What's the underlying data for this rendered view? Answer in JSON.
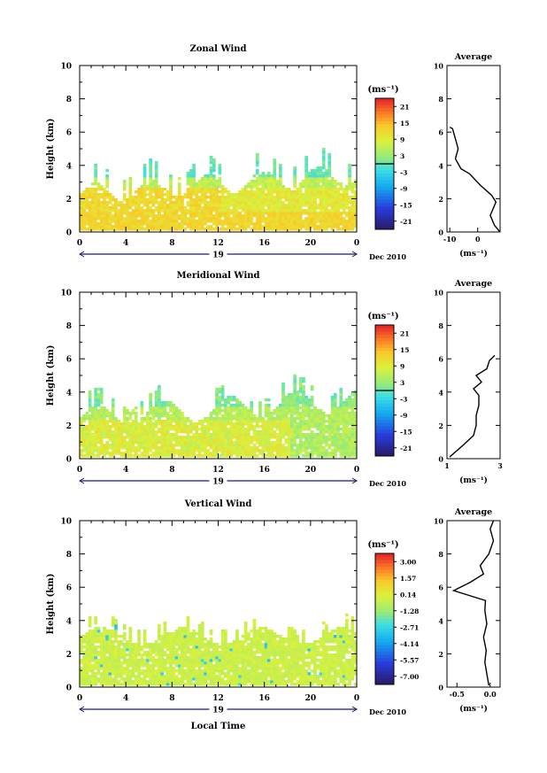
{
  "figure": {
    "date_label": "Dec 2010",
    "day_label": "19",
    "xlabel": "Local Time",
    "ylabel": "Height (km)",
    "unit_label": "(ms⁻¹)",
    "avg_title": "Average"
  },
  "chart_data": [
    {
      "type": "heatmap",
      "title": "Zonal Wind",
      "xlabel": "",
      "ylabel": "Height (km)",
      "x_ticks": [
        "0",
        "4",
        "8",
        "12",
        "16",
        "20",
        "0"
      ],
      "y_ticks": [
        "0",
        "2",
        "4",
        "6",
        "8",
        "10"
      ],
      "xlim": [
        0,
        24
      ],
      "ylim": [
        0,
        10
      ],
      "colorbar": {
        "unit": "(ms⁻¹)",
        "ticks": [
          "21",
          "15",
          "9",
          "3",
          "-3",
          "-9",
          "-15",
          "-21"
        ],
        "range": [
          -24,
          24
        ],
        "zero_line": true
      },
      "average_profile": {
        "title": "Average",
        "xlabel": "(ms⁻¹)",
        "x_ticks": [
          "-10",
          "0"
        ],
        "xlim": [
          -11,
          8
        ],
        "y_ticks": [
          "0",
          "2",
          "4",
          "6",
          "8",
          "10"
        ],
        "points": [
          [
            8,
            0
          ],
          [
            6,
            0.4
          ],
          [
            4.5,
            1
          ],
          [
            6.5,
            1.8
          ],
          [
            5,
            2.2
          ],
          [
            1,
            2.8
          ],
          [
            -3,
            3.5
          ],
          [
            -6,
            3.8
          ],
          [
            -8,
            4.4
          ],
          [
            -7,
            5
          ],
          [
            -8,
            5.6
          ],
          [
            -9,
            6.2
          ],
          [
            -10,
            6.3
          ]
        ]
      }
    },
    {
      "type": "heatmap",
      "title": "Meridional Wind",
      "xlabel": "",
      "ylabel": "Height (km)",
      "x_ticks": [
        "0",
        "4",
        "8",
        "12",
        "16",
        "20",
        "0"
      ],
      "y_ticks": [
        "0",
        "2",
        "4",
        "6",
        "8",
        "10"
      ],
      "xlim": [
        0,
        24
      ],
      "ylim": [
        0,
        10
      ],
      "colorbar": {
        "unit": "(ms⁻¹)",
        "ticks": [
          "21",
          "15",
          "9",
          "3",
          "-3",
          "-9",
          "-15",
          "-21"
        ],
        "range": [
          -24,
          24
        ],
        "zero_line": true
      },
      "average_profile": {
        "title": "Average",
        "xlabel": "(ms⁻¹)",
        "x_ticks": [
          "1",
          "3"
        ],
        "xlim": [
          1,
          3
        ],
        "y_ticks": [
          "0",
          "2",
          "4",
          "6",
          "8",
          "10"
        ],
        "points": [
          [
            1.1,
            0.1
          ],
          [
            1.6,
            0.8
          ],
          [
            2.0,
            1.4
          ],
          [
            2.1,
            2.0
          ],
          [
            2.1,
            2.6
          ],
          [
            2.2,
            3.2
          ],
          [
            2.2,
            3.8
          ],
          [
            2.0,
            4.2
          ],
          [
            2.3,
            4.6
          ],
          [
            2.1,
            5.0
          ],
          [
            2.5,
            5.4
          ],
          [
            2.6,
            5.9
          ],
          [
            2.8,
            6.2
          ]
        ]
      }
    },
    {
      "type": "heatmap",
      "title": "Vertical Wind",
      "xlabel": "Local Time",
      "ylabel": "Height (km)",
      "x_ticks": [
        "0",
        "4",
        "8",
        "12",
        "16",
        "20",
        "0"
      ],
      "y_ticks": [
        "0",
        "2",
        "4",
        "6",
        "8",
        "10"
      ],
      "xlim": [
        0,
        24
      ],
      "ylim": [
        0,
        10
      ],
      "colorbar": {
        "unit": "(ms⁻¹)",
        "ticks": [
          "3.00",
          "1.57",
          "0.14",
          "-1.28",
          "-2.71",
          "-4.14",
          "-5.57",
          "-7.00"
        ],
        "range": [
          -7.7,
          3.7
        ],
        "zero_line": false
      },
      "average_profile": {
        "title": "Average",
        "xlabel": "(ms⁻¹)",
        "x_ticks": [
          "-0.5",
          "0.0"
        ],
        "xlim": [
          -0.65,
          0.15
        ],
        "y_ticks": [
          "0",
          "2",
          "4",
          "6",
          "8",
          "10"
        ],
        "points": [
          [
            -0.02,
            0.1
          ],
          [
            -0.05,
            0.8
          ],
          [
            -0.08,
            1.5
          ],
          [
            -0.06,
            2.2
          ],
          [
            -0.1,
            3.0
          ],
          [
            -0.05,
            3.8
          ],
          [
            -0.08,
            4.6
          ],
          [
            -0.07,
            5.2
          ],
          [
            -0.55,
            5.8
          ],
          [
            -0.3,
            6.3
          ],
          [
            -0.1,
            6.8
          ],
          [
            -0.15,
            7.3
          ],
          [
            -0.02,
            8.0
          ],
          [
            0.05,
            8.8
          ],
          [
            0.0,
            9.5
          ],
          [
            0.05,
            10
          ]
        ]
      }
    }
  ]
}
